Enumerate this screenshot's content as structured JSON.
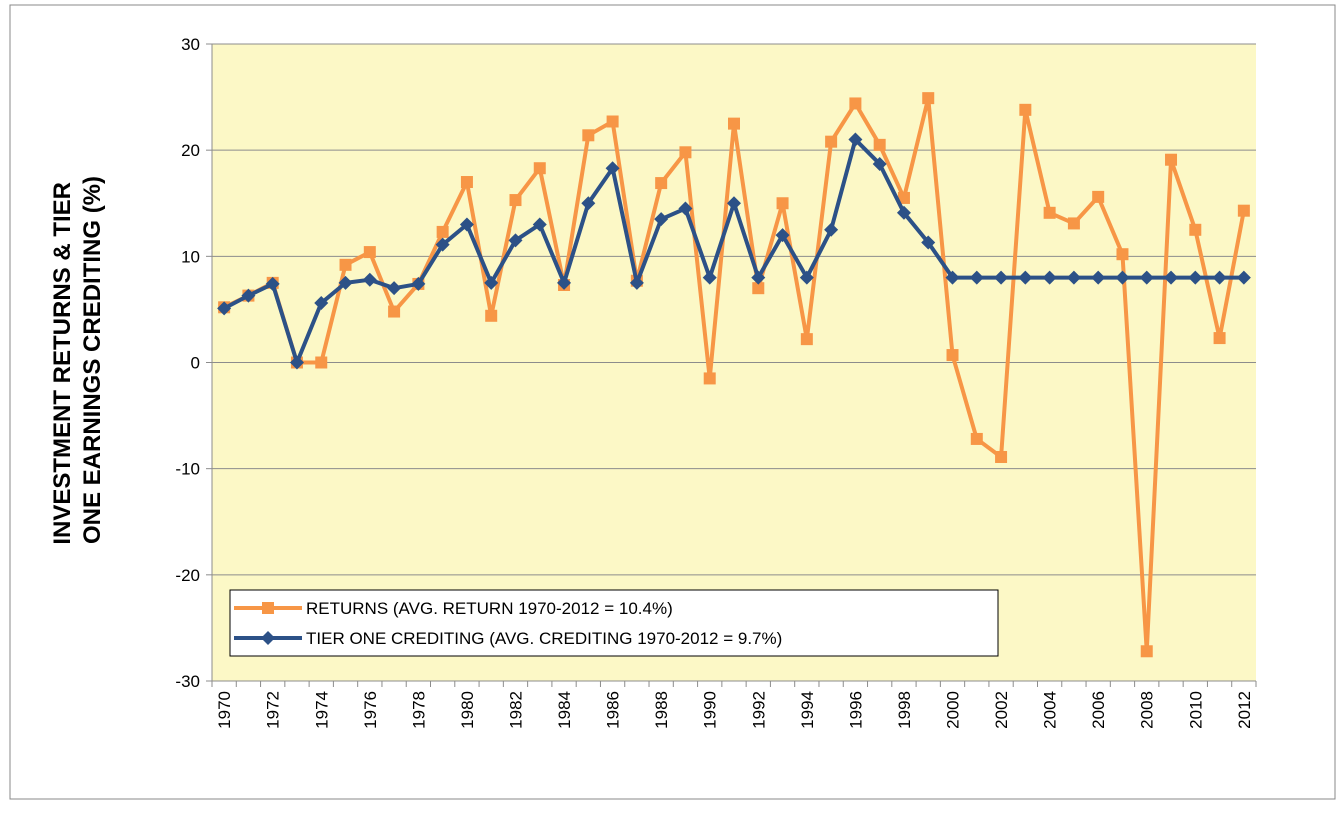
{
  "chart_data": {
    "type": "line",
    "ylabel": [
      "INVESTMENT RETURNS & TIER",
      "ONE EARNINGS CREDITING (%)"
    ],
    "categories": [
      "1970",
      null,
      "1972",
      null,
      "1974",
      null,
      "1976",
      null,
      "1978",
      null,
      "1980",
      null,
      "1982",
      null,
      "1984",
      null,
      "1986",
      null,
      "1988",
      null,
      "1990",
      null,
      "1992",
      null,
      "1994",
      null,
      "1996",
      null,
      "1998",
      null,
      "2000",
      null,
      "2002",
      null,
      "2004",
      null,
      "2006",
      null,
      "2008",
      null,
      "2010",
      null,
      "2012"
    ],
    "series": [
      {
        "name": "RETURNS (AVG. RETURN 1970-2012 = 10.4%)",
        "color": "#f79646",
        "marker": "square",
        "values": [
          5.2,
          6.3,
          7.5,
          0,
          0,
          9.2,
          10.4,
          4.8,
          7.4,
          12.3,
          17.0,
          4.4,
          15.3,
          18.3,
          7.3,
          21.4,
          22.7,
          7.7,
          16.9,
          19.8,
          -1.5,
          22.5,
          7.0,
          15.0,
          2.2,
          20.8,
          24.4,
          20.5,
          15.5,
          24.9,
          0.7,
          -7.2,
          -8.9,
          23.8,
          14.1,
          13.1,
          15.6,
          10.2,
          -27.2,
          19.1,
          12.5,
          2.3,
          14.3
        ]
      },
      {
        "name": "TIER ONE CREDITING (AVG. CREDITING 1970-2012 = 9.7%)",
        "color": "#2c5187",
        "marker": "diamond",
        "values": [
          5.1,
          6.3,
          7.4,
          0,
          5.6,
          7.5,
          7.8,
          7.0,
          7.4,
          11.1,
          13.0,
          7.5,
          11.5,
          13.0,
          7.5,
          15.0,
          18.3,
          7.5,
          13.5,
          14.5,
          8.0,
          15.0,
          8.0,
          12.0,
          8.0,
          12.5,
          21.0,
          18.7,
          14.1,
          11.3,
          8.0,
          8.0,
          8.0,
          8.0,
          8.0,
          8.0,
          8.0,
          8.0,
          8.0,
          8.0,
          8.0,
          8.0,
          8.0
        ]
      }
    ],
    "ylim": [
      -30,
      30
    ],
    "yticks": [
      -30,
      -20,
      -10,
      0,
      10,
      20,
      30
    ],
    "grid": true,
    "legend": "bottom-left",
    "plot_background": "#fcf8c6"
  }
}
